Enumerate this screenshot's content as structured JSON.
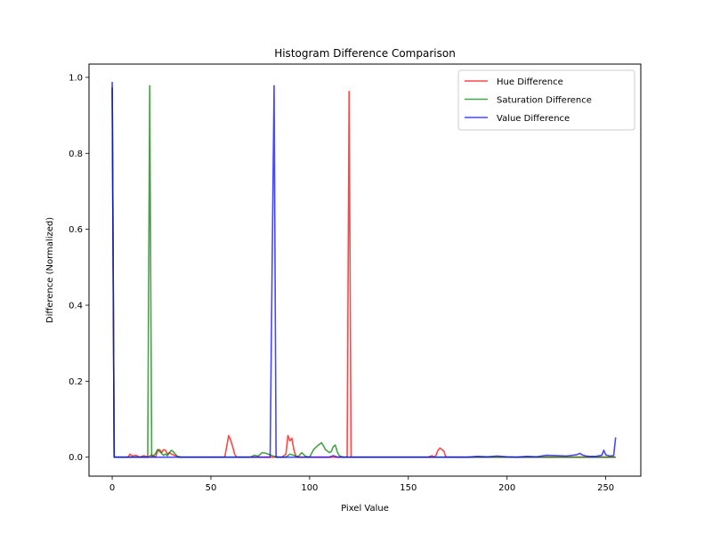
{
  "chart_data": {
    "type": "line",
    "title": "Histogram Difference Comparison",
    "xlabel": "Pixel Value",
    "ylabel": "Difference (Normalized)",
    "xlim": [
      -11.75,
      267.75
    ],
    "ylim": [
      -0.05,
      1.035
    ],
    "xticks": [
      0,
      50,
      100,
      150,
      200,
      250
    ],
    "yticks": [
      0.0,
      0.2,
      0.4,
      0.6,
      0.8,
      1.0
    ],
    "xtick_labels": [
      "0",
      "50",
      "100",
      "150",
      "200",
      "250"
    ],
    "ytick_labels": [
      "0.0",
      "0.2",
      "0.4",
      "0.6",
      "0.8",
      "1.0"
    ],
    "grid": false,
    "legend_position": "top-right",
    "series": [
      {
        "name": "Hue Difference",
        "color": "#ff0000",
        "points": [
          [
            0,
            0.97
          ],
          [
            1,
            0.0
          ],
          [
            8,
            0.0
          ],
          [
            9,
            0.008
          ],
          [
            10,
            0.003
          ],
          [
            12,
            0.005
          ],
          [
            14,
            0.0
          ],
          [
            16,
            0.004
          ],
          [
            18,
            0.0
          ],
          [
            20,
            0.006
          ],
          [
            22,
            0.0
          ],
          [
            23,
            0.018
          ],
          [
            24,
            0.02
          ],
          [
            25,
            0.012
          ],
          [
            26,
            0.02
          ],
          [
            27,
            0.018
          ],
          [
            28,
            0.008
          ],
          [
            29,
            0.012
          ],
          [
            30,
            0.008
          ],
          [
            32,
            0.004
          ],
          [
            34,
            0.0
          ],
          [
            57,
            0.0
          ],
          [
            59,
            0.057
          ],
          [
            60,
            0.045
          ],
          [
            61,
            0.028
          ],
          [
            62,
            0.008
          ],
          [
            63,
            0.0
          ],
          [
            86,
            0.0
          ],
          [
            88,
            0.008
          ],
          [
            89,
            0.057
          ],
          [
            90,
            0.043
          ],
          [
            91,
            0.05
          ],
          [
            92,
            0.02
          ],
          [
            93,
            0.003
          ],
          [
            95,
            0.0
          ],
          [
            119,
            0.0
          ],
          [
            120,
            0.963
          ],
          [
            121,
            0.0
          ],
          [
            160,
            0.0
          ],
          [
            162,
            0.004
          ],
          [
            163,
            0.0
          ],
          [
            164,
            0.005
          ],
          [
            165,
            0.018
          ],
          [
            166,
            0.024
          ],
          [
            167,
            0.02
          ],
          [
            168,
            0.016
          ],
          [
            169,
            0.0
          ],
          [
            255,
            0.0
          ]
        ]
      },
      {
        "name": "Saturation Difference",
        "color": "#008000",
        "points": [
          [
            0,
            0.975
          ],
          [
            1,
            0.0
          ],
          [
            18,
            0.0
          ],
          [
            19,
            0.978
          ],
          [
            20,
            0.0
          ],
          [
            21,
            0.004
          ],
          [
            22,
            0.01
          ],
          [
            23,
            0.02
          ],
          [
            24,
            0.015
          ],
          [
            25,
            0.01
          ],
          [
            26,
            0.005
          ],
          [
            27,
            0.008
          ],
          [
            28,
            0.004
          ],
          [
            29,
            0.012
          ],
          [
            30,
            0.018
          ],
          [
            31,
            0.014
          ],
          [
            32,
            0.008
          ],
          [
            33,
            0.002
          ],
          [
            35,
            0.0
          ],
          [
            70,
            0.0
          ],
          [
            72,
            0.005
          ],
          [
            74,
            0.003
          ],
          [
            76,
            0.012
          ],
          [
            78,
            0.01
          ],
          [
            80,
            0.006
          ],
          [
            82,
            0.002
          ],
          [
            84,
            0.0
          ],
          [
            88,
            0.0
          ],
          [
            90,
            0.008
          ],
          [
            92,
            0.005
          ],
          [
            94,
            0.0
          ],
          [
            96,
            0.012
          ],
          [
            98,
            0.002
          ],
          [
            100,
            0.0
          ],
          [
            102,
            0.02
          ],
          [
            104,
            0.03
          ],
          [
            106,
            0.038
          ],
          [
            107,
            0.03
          ],
          [
            108,
            0.02
          ],
          [
            110,
            0.012
          ],
          [
            111,
            0.015
          ],
          [
            112,
            0.028
          ],
          [
            113,
            0.032
          ],
          [
            114,
            0.014
          ],
          [
            115,
            0.004
          ],
          [
            117,
            0.0
          ],
          [
            255,
            0.0
          ]
        ]
      },
      {
        "name": "Value Difference",
        "color": "#0000ff",
        "points": [
          [
            0,
            0.988
          ],
          [
            1,
            0.0
          ],
          [
            80,
            0.0
          ],
          [
            81,
            0.5
          ],
          [
            82,
            0.978
          ],
          [
            83,
            0.0
          ],
          [
            110,
            0.0
          ],
          [
            112,
            0.004
          ],
          [
            114,
            0.0
          ],
          [
            170,
            0.0
          ],
          [
            180,
            0.0
          ],
          [
            185,
            0.002
          ],
          [
            190,
            0.001
          ],
          [
            195,
            0.003
          ],
          [
            200,
            0.001
          ],
          [
            205,
            0.0
          ],
          [
            210,
            0.002
          ],
          [
            215,
            0.001
          ],
          [
            220,
            0.005
          ],
          [
            225,
            0.004
          ],
          [
            230,
            0.003
          ],
          [
            235,
            0.006
          ],
          [
            237,
            0.01
          ],
          [
            238,
            0.006
          ],
          [
            240,
            0.003
          ],
          [
            242,
            0.002
          ],
          [
            245,
            0.002
          ],
          [
            248,
            0.005
          ],
          [
            249,
            0.018
          ],
          [
            250,
            0.006
          ],
          [
            252,
            0.003
          ],
          [
            254,
            0.004
          ],
          [
            255,
            0.052
          ]
        ]
      }
    ]
  }
}
